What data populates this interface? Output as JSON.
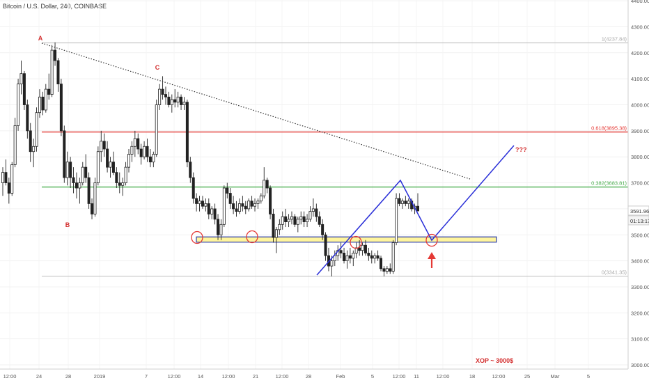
{
  "header": {
    "title": "Bitcoin / U.S. Dollar, 240, COINBASE"
  },
  "chart_data": {
    "type": "candlestick",
    "title": "Bitcoin / U.S. Dollar, 240, COINBASE",
    "ylim": [
      2970,
      4420
    ],
    "y_ticks": [
      3000,
      3100,
      3200,
      3300,
      3400,
      3500,
      3600,
      3700,
      3800,
      3900,
      4000,
      4100,
      4200,
      4300,
      4400
    ],
    "y_tick_labels": [
      "3000.00",
      "3100.00",
      "3200.00",
      "3300.00",
      "3400.00",
      "3500.00",
      "3600.00",
      "3700.00",
      "3800.00",
      "3900.00",
      "4000.00",
      "4100.00",
      "4200.00",
      "4300.00",
      "4400.00"
    ],
    "x_ticks": [
      "12:00",
      "24",
      "28",
      "2019",
      "7",
      "12:00",
      "14",
      "12:00",
      "21",
      "12:00",
      "28",
      "Feb",
      "5",
      "12:00",
      "11",
      "12:00",
      "18",
      "12:00",
      "25",
      "Mar",
      "5"
    ],
    "last_price": "3591.96",
    "countdown": "01:13:17",
    "fib_levels": [
      {
        "label": "1(4237.84)",
        "value": 4237.84,
        "color": "#bdbdbd"
      },
      {
        "label": "0.618(3895.38)",
        "value": 3895.38,
        "color": "#e53935"
      },
      {
        "label": "0.382(3683.81)",
        "value": 3683.81,
        "color": "#4caf50"
      },
      {
        "label": "0(3341.35)",
        "value": 3341.35,
        "color": "#bdbdbd"
      }
    ],
    "support_zone": {
      "low": 3472,
      "high": 3492
    },
    "wave_labels": [
      "A",
      "B",
      "C"
    ],
    "projection_label": "???",
    "note": "XOP ~ 3000$",
    "candles": [
      {
        "o": 3700,
        "h": 3760,
        "l": 3650,
        "c": 3740
      },
      {
        "o": 3740,
        "h": 3790,
        "l": 3690,
        "c": 3700
      },
      {
        "o": 3700,
        "h": 3720,
        "l": 3620,
        "c": 3660
      },
      {
        "o": 3660,
        "h": 3780,
        "l": 3650,
        "c": 3770
      },
      {
        "o": 3770,
        "h": 3950,
        "l": 3760,
        "c": 3920
      },
      {
        "o": 3920,
        "h": 4100,
        "l": 3900,
        "c": 4080
      },
      {
        "o": 4080,
        "h": 4170,
        "l": 4040,
        "c": 4120
      },
      {
        "o": 4120,
        "h": 4130,
        "l": 3980,
        "c": 4000
      },
      {
        "o": 4000,
        "h": 4020,
        "l": 3870,
        "c": 3900
      },
      {
        "o": 3900,
        "h": 3930,
        "l": 3780,
        "c": 3820
      },
      {
        "o": 3820,
        "h": 3870,
        "l": 3760,
        "c": 3840
      },
      {
        "o": 3840,
        "h": 3990,
        "l": 3820,
        "c": 3970
      },
      {
        "o": 3970,
        "h": 4060,
        "l": 3950,
        "c": 4030
      },
      {
        "o": 4030,
        "h": 4050,
        "l": 3960,
        "c": 3980
      },
      {
        "o": 3980,
        "h": 4080,
        "l": 3970,
        "c": 4060
      },
      {
        "o": 4060,
        "h": 4120,
        "l": 4020,
        "c": 4040
      },
      {
        "o": 4040,
        "h": 4230,
        "l": 4030,
        "c": 4210
      },
      {
        "o": 4210,
        "h": 4240,
        "l": 4150,
        "c": 4170
      },
      {
        "o": 4170,
        "h": 4180,
        "l": 4050,
        "c": 4080
      },
      {
        "o": 4080,
        "h": 4100,
        "l": 3880,
        "c": 3900
      },
      {
        "o": 3900,
        "h": 3920,
        "l": 3700,
        "c": 3720
      },
      {
        "o": 3720,
        "h": 3820,
        "l": 3690,
        "c": 3780
      },
      {
        "o": 3780,
        "h": 3800,
        "l": 3680,
        "c": 3720
      },
      {
        "o": 3720,
        "h": 3760,
        "l": 3660,
        "c": 3700
      },
      {
        "o": 3700,
        "h": 3740,
        "l": 3640,
        "c": 3680
      },
      {
        "o": 3680,
        "h": 3720,
        "l": 3620,
        "c": 3700
      },
      {
        "o": 3700,
        "h": 3780,
        "l": 3690,
        "c": 3760
      },
      {
        "o": 3760,
        "h": 3810,
        "l": 3700,
        "c": 3720
      },
      {
        "o": 3720,
        "h": 3740,
        "l": 3600,
        "c": 3620
      },
      {
        "o": 3620,
        "h": 3640,
        "l": 3560,
        "c": 3580
      },
      {
        "o": 3580,
        "h": 3720,
        "l": 3570,
        "c": 3700
      },
      {
        "o": 3700,
        "h": 3840,
        "l": 3690,
        "c": 3820
      },
      {
        "o": 3820,
        "h": 3900,
        "l": 3780,
        "c": 3860
      },
      {
        "o": 3860,
        "h": 3890,
        "l": 3800,
        "c": 3830
      },
      {
        "o": 3830,
        "h": 3860,
        "l": 3740,
        "c": 3760
      },
      {
        "o": 3760,
        "h": 3800,
        "l": 3720,
        "c": 3780
      },
      {
        "o": 3780,
        "h": 3820,
        "l": 3730,
        "c": 3740
      },
      {
        "o": 3740,
        "h": 3760,
        "l": 3680,
        "c": 3700
      },
      {
        "o": 3700,
        "h": 3740,
        "l": 3660,
        "c": 3690
      },
      {
        "o": 3690,
        "h": 3720,
        "l": 3650,
        "c": 3700
      },
      {
        "o": 3700,
        "h": 3780,
        "l": 3690,
        "c": 3760
      },
      {
        "o": 3760,
        "h": 3830,
        "l": 3740,
        "c": 3810
      },
      {
        "o": 3810,
        "h": 3860,
        "l": 3780,
        "c": 3840
      },
      {
        "o": 3840,
        "h": 3900,
        "l": 3800,
        "c": 3870
      },
      {
        "o": 3870,
        "h": 3890,
        "l": 3810,
        "c": 3830
      },
      {
        "o": 3830,
        "h": 3850,
        "l": 3770,
        "c": 3800
      },
      {
        "o": 3800,
        "h": 3860,
        "l": 3790,
        "c": 3840
      },
      {
        "o": 3840,
        "h": 3870,
        "l": 3780,
        "c": 3800
      },
      {
        "o": 3800,
        "h": 3830,
        "l": 3760,
        "c": 3780
      },
      {
        "o": 3780,
        "h": 3820,
        "l": 3760,
        "c": 3810
      },
      {
        "o": 3810,
        "h": 4020,
        "l": 3800,
        "c": 4000
      },
      {
        "o": 4000,
        "h": 4080,
        "l": 3980,
        "c": 4060
      },
      {
        "o": 4060,
        "h": 4110,
        "l": 4020,
        "c": 4040
      },
      {
        "o": 4040,
        "h": 4070,
        "l": 4000,
        "c": 4030
      },
      {
        "o": 4030,
        "h": 4050,
        "l": 3990,
        "c": 4000
      },
      {
        "o": 4000,
        "h": 4040,
        "l": 3970,
        "c": 4020
      },
      {
        "o": 4020,
        "h": 4060,
        "l": 3990,
        "c": 4010
      },
      {
        "o": 4010,
        "h": 4050,
        "l": 3990,
        "c": 4030
      },
      {
        "o": 4030,
        "h": 4040,
        "l": 3980,
        "c": 4000
      },
      {
        "o": 4000,
        "h": 4030,
        "l": 3980,
        "c": 4010
      },
      {
        "o": 4010,
        "h": 4020,
        "l": 3760,
        "c": 3780
      },
      {
        "o": 3780,
        "h": 3800,
        "l": 3700,
        "c": 3720
      },
      {
        "o": 3720,
        "h": 3740,
        "l": 3620,
        "c": 3640
      },
      {
        "o": 3640,
        "h": 3660,
        "l": 3590,
        "c": 3620
      },
      {
        "o": 3620,
        "h": 3650,
        "l": 3590,
        "c": 3630
      },
      {
        "o": 3630,
        "h": 3650,
        "l": 3600,
        "c": 3610
      },
      {
        "o": 3610,
        "h": 3640,
        "l": 3590,
        "c": 3620
      },
      {
        "o": 3620,
        "h": 3640,
        "l": 3560,
        "c": 3580
      },
      {
        "o": 3580,
        "h": 3610,
        "l": 3560,
        "c": 3600
      },
      {
        "o": 3600,
        "h": 3620,
        "l": 3540,
        "c": 3560
      },
      {
        "o": 3560,
        "h": 3580,
        "l": 3480,
        "c": 3500
      },
      {
        "o": 3500,
        "h": 3560,
        "l": 3480,
        "c": 3540
      },
      {
        "o": 3540,
        "h": 3690,
        "l": 3530,
        "c": 3680
      },
      {
        "o": 3680,
        "h": 3700,
        "l": 3640,
        "c": 3660
      },
      {
        "o": 3660,
        "h": 3680,
        "l": 3600,
        "c": 3620
      },
      {
        "o": 3620,
        "h": 3650,
        "l": 3580,
        "c": 3600
      },
      {
        "o": 3600,
        "h": 3630,
        "l": 3570,
        "c": 3590
      },
      {
        "o": 3590,
        "h": 3640,
        "l": 3580,
        "c": 3620
      },
      {
        "o": 3620,
        "h": 3650,
        "l": 3590,
        "c": 3610
      },
      {
        "o": 3610,
        "h": 3630,
        "l": 3580,
        "c": 3600
      },
      {
        "o": 3600,
        "h": 3640,
        "l": 3590,
        "c": 3630
      },
      {
        "o": 3630,
        "h": 3650,
        "l": 3600,
        "c": 3610
      },
      {
        "o": 3610,
        "h": 3640,
        "l": 3590,
        "c": 3620
      },
      {
        "o": 3620,
        "h": 3640,
        "l": 3600,
        "c": 3630
      },
      {
        "o": 3630,
        "h": 3660,
        "l": 3620,
        "c": 3650
      },
      {
        "o": 3650,
        "h": 3760,
        "l": 3640,
        "c": 3710
      },
      {
        "o": 3710,
        "h": 3720,
        "l": 3660,
        "c": 3680
      },
      {
        "o": 3680,
        "h": 3690,
        "l": 3560,
        "c": 3580
      },
      {
        "o": 3580,
        "h": 3600,
        "l": 3470,
        "c": 3490
      },
      {
        "o": 3490,
        "h": 3530,
        "l": 3430,
        "c": 3520
      },
      {
        "o": 3520,
        "h": 3560,
        "l": 3500,
        "c": 3540
      },
      {
        "o": 3540,
        "h": 3590,
        "l": 3520,
        "c": 3570
      },
      {
        "o": 3570,
        "h": 3600,
        "l": 3530,
        "c": 3550
      },
      {
        "o": 3550,
        "h": 3580,
        "l": 3530,
        "c": 3560
      },
      {
        "o": 3560,
        "h": 3590,
        "l": 3540,
        "c": 3570
      },
      {
        "o": 3570,
        "h": 3580,
        "l": 3530,
        "c": 3540
      },
      {
        "o": 3540,
        "h": 3570,
        "l": 3510,
        "c": 3560
      },
      {
        "o": 3560,
        "h": 3590,
        "l": 3540,
        "c": 3570
      },
      {
        "o": 3570,
        "h": 3590,
        "l": 3530,
        "c": 3550
      },
      {
        "o": 3550,
        "h": 3580,
        "l": 3530,
        "c": 3560
      },
      {
        "o": 3560,
        "h": 3610,
        "l": 3550,
        "c": 3590
      },
      {
        "o": 3590,
        "h": 3640,
        "l": 3570,
        "c": 3600
      },
      {
        "o": 3600,
        "h": 3620,
        "l": 3550,
        "c": 3570
      },
      {
        "o": 3570,
        "h": 3590,
        "l": 3530,
        "c": 3540
      },
      {
        "o": 3540,
        "h": 3560,
        "l": 3480,
        "c": 3500
      },
      {
        "o": 3500,
        "h": 3510,
        "l": 3400,
        "c": 3420
      },
      {
        "o": 3420,
        "h": 3450,
        "l": 3360,
        "c": 3380
      },
      {
        "o": 3380,
        "h": 3420,
        "l": 3340,
        "c": 3400
      },
      {
        "o": 3400,
        "h": 3440,
        "l": 3380,
        "c": 3420
      },
      {
        "o": 3420,
        "h": 3460,
        "l": 3400,
        "c": 3440
      },
      {
        "o": 3440,
        "h": 3470,
        "l": 3410,
        "c": 3430
      },
      {
        "o": 3430,
        "h": 3450,
        "l": 3390,
        "c": 3400
      },
      {
        "o": 3400,
        "h": 3440,
        "l": 3370,
        "c": 3420
      },
      {
        "o": 3420,
        "h": 3450,
        "l": 3390,
        "c": 3410
      },
      {
        "o": 3410,
        "h": 3440,
        "l": 3380,
        "c": 3430
      },
      {
        "o": 3430,
        "h": 3470,
        "l": 3410,
        "c": 3450
      },
      {
        "o": 3450,
        "h": 3480,
        "l": 3420,
        "c": 3440
      },
      {
        "o": 3440,
        "h": 3470,
        "l": 3420,
        "c": 3460
      },
      {
        "o": 3460,
        "h": 3480,
        "l": 3420,
        "c": 3430
      },
      {
        "o": 3430,
        "h": 3450,
        "l": 3400,
        "c": 3420
      },
      {
        "o": 3420,
        "h": 3440,
        "l": 3390,
        "c": 3410
      },
      {
        "o": 3410,
        "h": 3430,
        "l": 3390,
        "c": 3420
      },
      {
        "o": 3420,
        "h": 3440,
        "l": 3400,
        "c": 3410
      },
      {
        "o": 3410,
        "h": 3420,
        "l": 3360,
        "c": 3370
      },
      {
        "o": 3370,
        "h": 3380,
        "l": 3340,
        "c": 3360
      },
      {
        "o": 3360,
        "h": 3380,
        "l": 3350,
        "c": 3370
      },
      {
        "o": 3370,
        "h": 3390,
        "l": 3350,
        "c": 3360
      },
      {
        "o": 3360,
        "h": 3480,
        "l": 3350,
        "c": 3470
      },
      {
        "o": 3470,
        "h": 3660,
        "l": 3460,
        "c": 3640
      },
      {
        "o": 3640,
        "h": 3660,
        "l": 3610,
        "c": 3620
      },
      {
        "o": 3620,
        "h": 3640,
        "l": 3600,
        "c": 3630
      },
      {
        "o": 3630,
        "h": 3650,
        "l": 3610,
        "c": 3620
      },
      {
        "o": 3620,
        "h": 3640,
        "l": 3600,
        "c": 3630
      },
      {
        "o": 3630,
        "h": 3640,
        "l": 3590,
        "c": 3600
      },
      {
        "o": 3600,
        "h": 3620,
        "l": 3580,
        "c": 3610
      },
      {
        "o": 3610,
        "h": 3660,
        "l": 3590,
        "c": 3592
      }
    ]
  }
}
